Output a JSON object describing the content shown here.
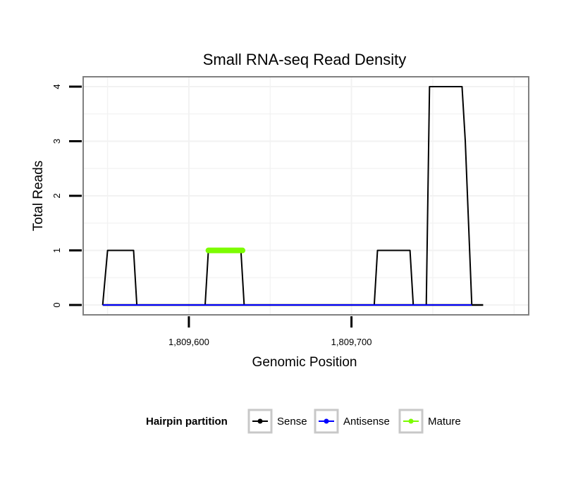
{
  "chart_data": {
    "type": "line",
    "title": "Small RNA-seq Read Density",
    "xlabel": "Genomic Position",
    "ylabel": "Total Reads",
    "xlim": [
      1809535,
      1809809
    ],
    "ylim": [
      -0.18,
      4.18
    ],
    "x_ticks": [
      {
        "value": 1809600,
        "label": "1,809,600"
      },
      {
        "value": 1809700,
        "label": "1,809,700"
      }
    ],
    "y_ticks": [
      {
        "value": 0,
        "label": "0"
      },
      {
        "value": 1,
        "label": "1"
      },
      {
        "value": 2,
        "label": "2"
      },
      {
        "value": 3,
        "label": "3"
      },
      {
        "value": 4,
        "label": "4"
      }
    ],
    "grid": true,
    "series": [
      {
        "name": "Sense",
        "color": "#000000",
        "x": [
          1809547,
          1809550,
          1809566,
          1809568,
          1809610,
          1809612,
          1809632,
          1809634,
          1809714,
          1809716,
          1809736,
          1809738,
          1809746,
          1809748,
          1809768,
          1809770,
          1809774
        ],
        "y": [
          0,
          1,
          1,
          0,
          0,
          1,
          1,
          0,
          0,
          1,
          1,
          0,
          0,
          4,
          4,
          3,
          0
        ]
      },
      {
        "name": "Antisense",
        "color": "#0000ff",
        "x": [
          1809547,
          1809774
        ],
        "y": [
          0,
          0
        ]
      },
      {
        "name": "Mature",
        "color": "#7cfc00",
        "x": [
          1809612,
          1809633
        ],
        "y": [
          1,
          1
        ]
      }
    ],
    "baseline": {
      "x": [
        1809547,
        1809781
      ],
      "y": [
        0,
        0
      ]
    },
    "legend": {
      "title": "Hairpin partition",
      "position": "bottom",
      "items": [
        {
          "label": "Sense",
          "color": "#000000"
        },
        {
          "label": "Antisense",
          "color": "#0000ff"
        },
        {
          "label": "Mature",
          "color": "#7cfc00"
        }
      ]
    }
  }
}
